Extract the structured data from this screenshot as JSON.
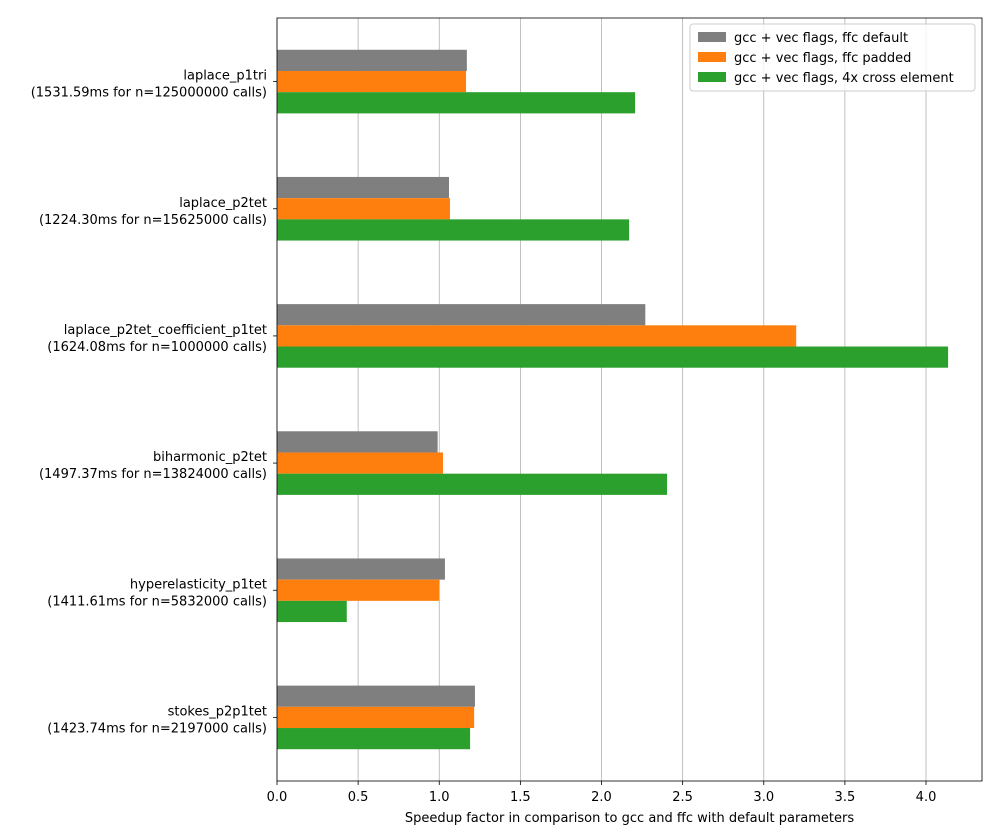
{
  "chart_data": {
    "type": "bar",
    "orientation": "horizontal",
    "title": "",
    "xlabel": "Speedup factor in comparison to gcc and ffc with default parameters",
    "ylabel": "",
    "xlim": [
      0,
      4.345
    ],
    "xticks": [
      "0.0",
      "0.5",
      "1.0",
      "1.5",
      "2.0",
      "2.5",
      "3.0",
      "3.5",
      "4.0"
    ],
    "grid": "x",
    "legend_position": "top-right",
    "categories": [
      [
        "laplace_p1tri",
        "(1531.59ms for n=125000000 calls)"
      ],
      [
        "laplace_p2tet",
        "(1224.30ms for n=15625000 calls)"
      ],
      [
        "laplace_p2tet_coefficient_p1tet",
        "(1624.08ms for n=1000000 calls)"
      ],
      [
        "biharmonic_p2tet",
        "(1497.37ms for n=13824000 calls)"
      ],
      [
        "hyperelasticity_p1tet",
        "(1411.61ms for n=5832000 calls)"
      ],
      [
        "stokes_p2p1tet",
        "(1423.74ms for n=2197000 calls)"
      ]
    ],
    "series": [
      {
        "name": "gcc + vec flags, ffc default",
        "color": "#7f7f7f",
        "values": [
          1.17,
          1.06,
          2.27,
          0.99,
          1.035,
          1.22
        ]
      },
      {
        "name": "gcc + vec flags, ffc padded",
        "color": "#ff7f0e",
        "values": [
          1.165,
          1.066,
          3.2,
          1.023,
          1.0,
          1.215
        ]
      },
      {
        "name": "gcc + vec flags, 4x cross element",
        "color": "#2ca02c",
        "values": [
          2.207,
          2.17,
          4.136,
          2.404,
          0.43,
          1.19
        ]
      }
    ]
  }
}
